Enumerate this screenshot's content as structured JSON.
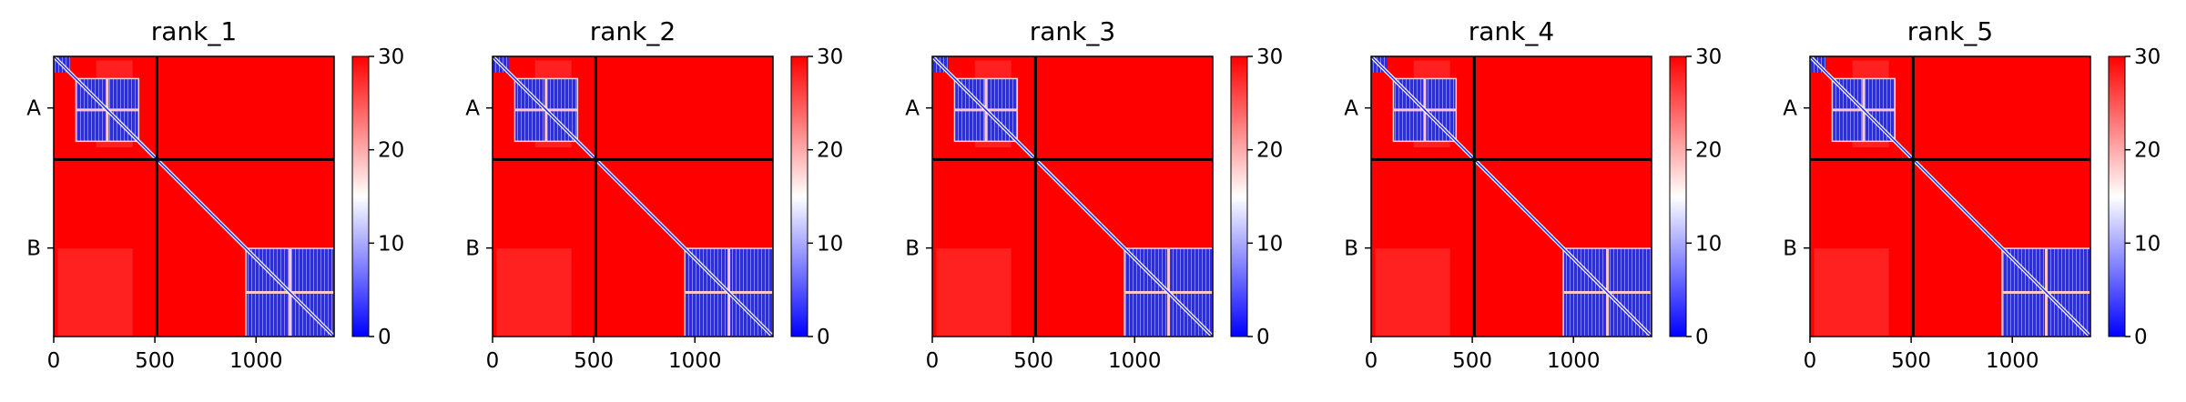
{
  "chart_data": {
    "type": "heatmap",
    "description_values": "predicted aligned error matrices",
    "panels": [
      {
        "title": "rank_1"
      },
      {
        "title": "rank_2"
      },
      {
        "title": "rank_3"
      },
      {
        "title": "rank_4"
      },
      {
        "title": "rank_5"
      }
    ],
    "xlim": [
      0,
      1386
    ],
    "ylim": [
      1386,
      0
    ],
    "x_ticks": [
      0,
      500,
      1000
    ],
    "x_tick_labels": [
      "0",
      "500",
      "1000"
    ],
    "chain_labels": [
      "A",
      "B"
    ],
    "chain_ranges": [
      [
        0,
        510
      ],
      [
        510,
        1386
      ]
    ],
    "chain_boundary": 510,
    "colorbar": {
      "min": 0,
      "max": 30,
      "ticks": [
        0,
        10,
        20,
        30
      ],
      "tick_labels": [
        "0",
        "10",
        "20",
        "30"
      ],
      "colors": [
        "#0000ff",
        "#ffffff",
        "#ff0000"
      ]
    },
    "low_error_blocks": [
      [
        0,
        80,
        0,
        80
      ],
      [
        110,
        420,
        110,
        420
      ],
      [
        950,
        1386,
        950,
        1386
      ]
    ]
  }
}
